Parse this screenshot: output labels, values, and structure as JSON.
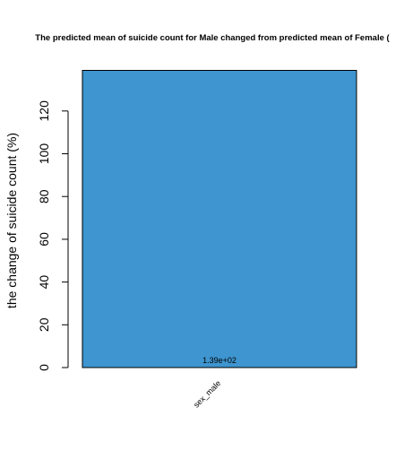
{
  "chart_data": {
    "type": "bar",
    "title": "The predicted mean of suicide count for Male changed from predicted mean of Female (",
    "xlabel": "",
    "ylabel": "the change of suicide count (%)",
    "categories": [
      "sex_male"
    ],
    "values": [
      139
    ],
    "data_labels": [
      "1.39e+02"
    ],
    "yticks": [
      0,
      20,
      40,
      60,
      80,
      100,
      120
    ],
    "ytick_labels": [
      "0",
      "20",
      "40",
      "60",
      "80",
      "100",
      "120"
    ],
    "ylim": [
      0,
      139
    ],
    "bar_color": "#3e95cf",
    "grid": false,
    "legend": "none"
  }
}
